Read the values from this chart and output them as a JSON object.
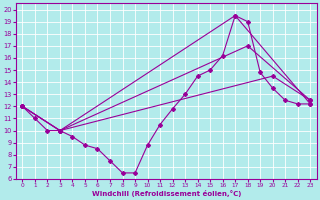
{
  "xlabel": "Windchill (Refroidissement éolien,°C)",
  "bg_color": "#b2ebeb",
  "line_color": "#990099",
  "grid_color": "#ffffff",
  "xlim": [
    -0.5,
    23.5
  ],
  "ylim": [
    6,
    20.5
  ],
  "xticks": [
    0,
    1,
    2,
    3,
    4,
    5,
    6,
    7,
    8,
    9,
    10,
    11,
    12,
    13,
    14,
    15,
    16,
    17,
    18,
    19,
    20,
    21,
    22,
    23
  ],
  "yticks": [
    6,
    7,
    8,
    9,
    10,
    11,
    12,
    13,
    14,
    15,
    16,
    17,
    18,
    19,
    20
  ],
  "line1_x": [
    0,
    1,
    2,
    3,
    4,
    5,
    6,
    7,
    8,
    9,
    10,
    11,
    12,
    13,
    14,
    15,
    16,
    17,
    18,
    19,
    20,
    21,
    22,
    23
  ],
  "line1_y": [
    12,
    11,
    10,
    10,
    9.5,
    8.8,
    8.5,
    7.5,
    6.5,
    6.5,
    8.8,
    10.5,
    11.8,
    13.0,
    14.5,
    15.0,
    16.2,
    19.5,
    19.0,
    14.8,
    13.5,
    12.5,
    12.2,
    12.2
  ],
  "line2_x": [
    0,
    3,
    17,
    23
  ],
  "line2_y": [
    12,
    10,
    19.5,
    12.2
  ],
  "line3_x": [
    0,
    3,
    18,
    23
  ],
  "line3_y": [
    12,
    10,
    17.0,
    12.5
  ],
  "line4_x": [
    0,
    3,
    20,
    23
  ],
  "line4_y": [
    12,
    10,
    14.5,
    12.5
  ]
}
